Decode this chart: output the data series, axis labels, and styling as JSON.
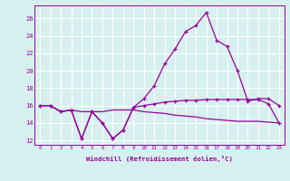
{
  "x": [
    0,
    1,
    2,
    3,
    4,
    5,
    6,
    7,
    8,
    9,
    10,
    11,
    12,
    13,
    14,
    15,
    16,
    17,
    18,
    19,
    20,
    21,
    22,
    23
  ],
  "line_temp": [
    16,
    16,
    15.3,
    15.5,
    12.2,
    15.3,
    14.0,
    12.2,
    13.2,
    15.8,
    16.8,
    18.3,
    20.8,
    22.5,
    24.5,
    25.2,
    26.7,
    23.5,
    22.8,
    20.0,
    16.5,
    16.8,
    16.8,
    16.0
  ],
  "line_wc": [
    16,
    16,
    15.3,
    15.5,
    12.2,
    15.3,
    14.0,
    12.2,
    13.2,
    15.8,
    16.0,
    16.2,
    16.4,
    16.5,
    16.6,
    16.6,
    16.7,
    16.7,
    16.7,
    16.7,
    16.7,
    16.7,
    16.2,
    14.0
  ],
  "line_ref": [
    16,
    16,
    15.3,
    15.5,
    15.3,
    15.3,
    15.3,
    15.5,
    15.5,
    15.5,
    15.3,
    15.2,
    15.1,
    14.9,
    14.8,
    14.7,
    14.5,
    14.4,
    14.3,
    14.2,
    14.2,
    14.2,
    14.1,
    14.0
  ],
  "color": "#990099",
  "background": "#d6f0f0",
  "grid_color": "#b0d8d8",
  "xlabel": "Windchill (Refroidissement éolien,°C)",
  "ylim": [
    11.5,
    27.5
  ],
  "xlim": [
    -0.5,
    23.5
  ],
  "yticks": [
    12,
    14,
    16,
    18,
    20,
    22,
    24,
    26
  ],
  "xticks": [
    0,
    1,
    2,
    3,
    4,
    5,
    6,
    7,
    8,
    9,
    10,
    11,
    12,
    13,
    14,
    15,
    16,
    17,
    18,
    19,
    20,
    21,
    22,
    23
  ],
  "xtick_labels": [
    "0",
    "1",
    "2",
    "3",
    "4",
    "5",
    "6",
    "7",
    "8",
    "9",
    "10",
    "11",
    "12",
    "13",
    "14",
    "15",
    "16",
    "17",
    "18",
    "19",
    "20",
    "21",
    "22",
    "23"
  ]
}
